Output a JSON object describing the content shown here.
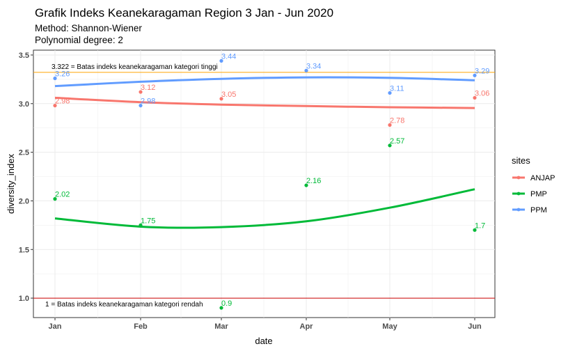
{
  "chart_data": {
    "type": "scatter",
    "title": "Grafik Indeks Keanekaragaman Region 3 Jan - Jun 2020",
    "subtitle_lines": [
      "Method: Shannon-Wiener",
      "Polynomial degree: 2"
    ],
    "xlabel": "date",
    "ylabel": "diversity_index",
    "x_ticks": [
      "Jan",
      "Feb",
      "Mar",
      "Apr",
      "May",
      "Jun"
    ],
    "y_ticks": [
      "1.0",
      "1.5",
      "2.0",
      "2.5",
      "3.0",
      "3.5"
    ],
    "ylim": [
      0.8,
      3.55
    ],
    "grid": true,
    "legend": {
      "title": "sites",
      "position": "right"
    },
    "reference_lines": [
      {
        "value": 3.322,
        "label": "3.322 = Batas indeks keanekaragaman kategori tinggi",
        "color": "#ffa500"
      },
      {
        "value": 1.0,
        "label": "1 = Batas indeks keanekaragaman kategori rendah",
        "color": "#cc0000"
      }
    ],
    "series": [
      {
        "name": "ANJAP",
        "color": "#f8766d",
        "x": [
          "Jan",
          "Feb",
          "Mar",
          "Apr",
          "May",
          "Jun"
        ],
        "values": [
          2.98,
          3.12,
          3.05,
          null,
          2.78,
          3.06
        ],
        "labels": [
          "2.98",
          "3.12",
          "3.05",
          null,
          "2.78",
          "3.06"
        ],
        "fit": [
          3.06,
          3.015,
          2.99,
          2.975,
          2.963,
          2.955
        ]
      },
      {
        "name": "PMP",
        "color": "#00ba38",
        "x": [
          "Jan",
          "Feb",
          "Mar",
          "Apr",
          "May",
          "Jun"
        ],
        "values": [
          2.02,
          1.75,
          0.9,
          2.16,
          2.57,
          1.7
        ],
        "labels": [
          "2.02",
          "1.75",
          "0.9",
          "2.16",
          "2.57",
          "1.7"
        ],
        "fit": [
          1.82,
          1.735,
          1.73,
          1.79,
          1.93,
          2.12
        ]
      },
      {
        "name": "PPM",
        "color": "#619cff",
        "x": [
          "Jan",
          "Feb",
          "Mar",
          "Apr",
          "May",
          "Jun"
        ],
        "values": [
          3.26,
          2.98,
          3.44,
          3.34,
          3.11,
          3.29
        ],
        "labels": [
          "3.26",
          "2.98",
          "3.44",
          "3.34",
          "3.11",
          "3.29"
        ],
        "fit": [
          3.18,
          3.225,
          3.255,
          3.27,
          3.265,
          3.24
        ]
      }
    ]
  }
}
